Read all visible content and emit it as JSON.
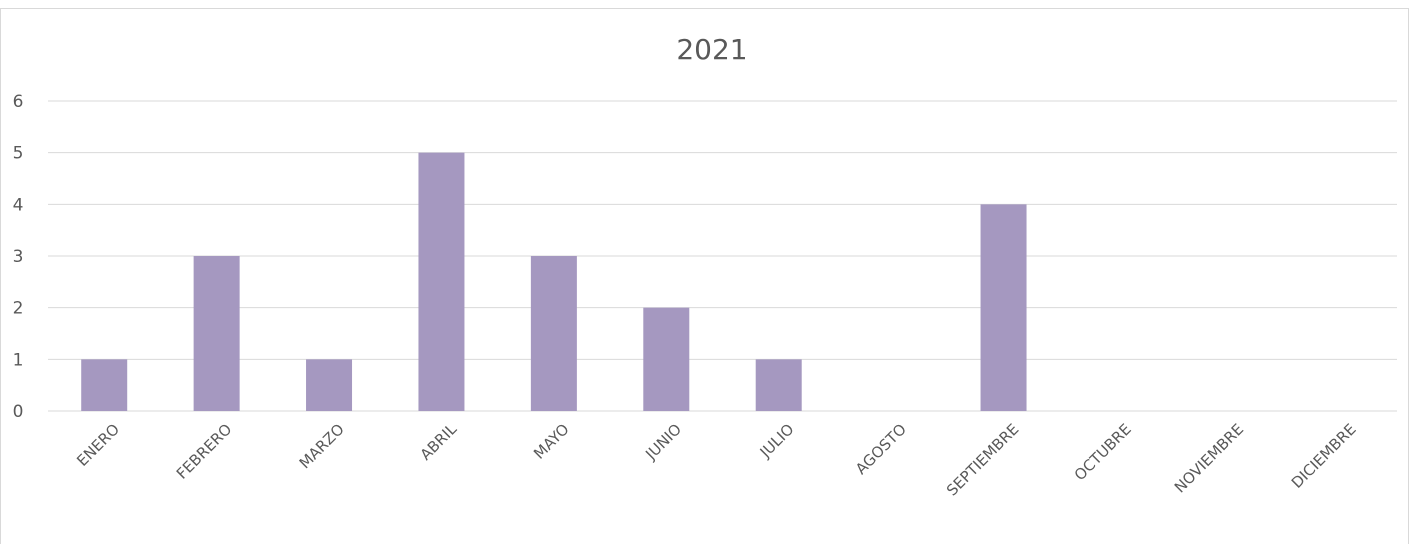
{
  "chart_data": {
    "type": "bar",
    "title": "2021",
    "categories": [
      "ENERO",
      "FEBRERO",
      "MARZO",
      "ABRIL",
      "MAYO",
      "JUNIO",
      "JULIO",
      "AGOSTO",
      "SEPTIEMBRE",
      "OCTUBRE",
      "NOVIEMBRE",
      "DICIEMBRE"
    ],
    "values": [
      1,
      3,
      1,
      5,
      3,
      2,
      1,
      0,
      4,
      0,
      0,
      0
    ],
    "yticks": [
      0,
      1,
      2,
      3,
      4,
      5,
      6
    ],
    "ylim": [
      0,
      6
    ],
    "grid": true,
    "legend": "none",
    "bar_color": "#a598c0",
    "grid_color": "#d9d9d9",
    "text_color": "#595959"
  }
}
